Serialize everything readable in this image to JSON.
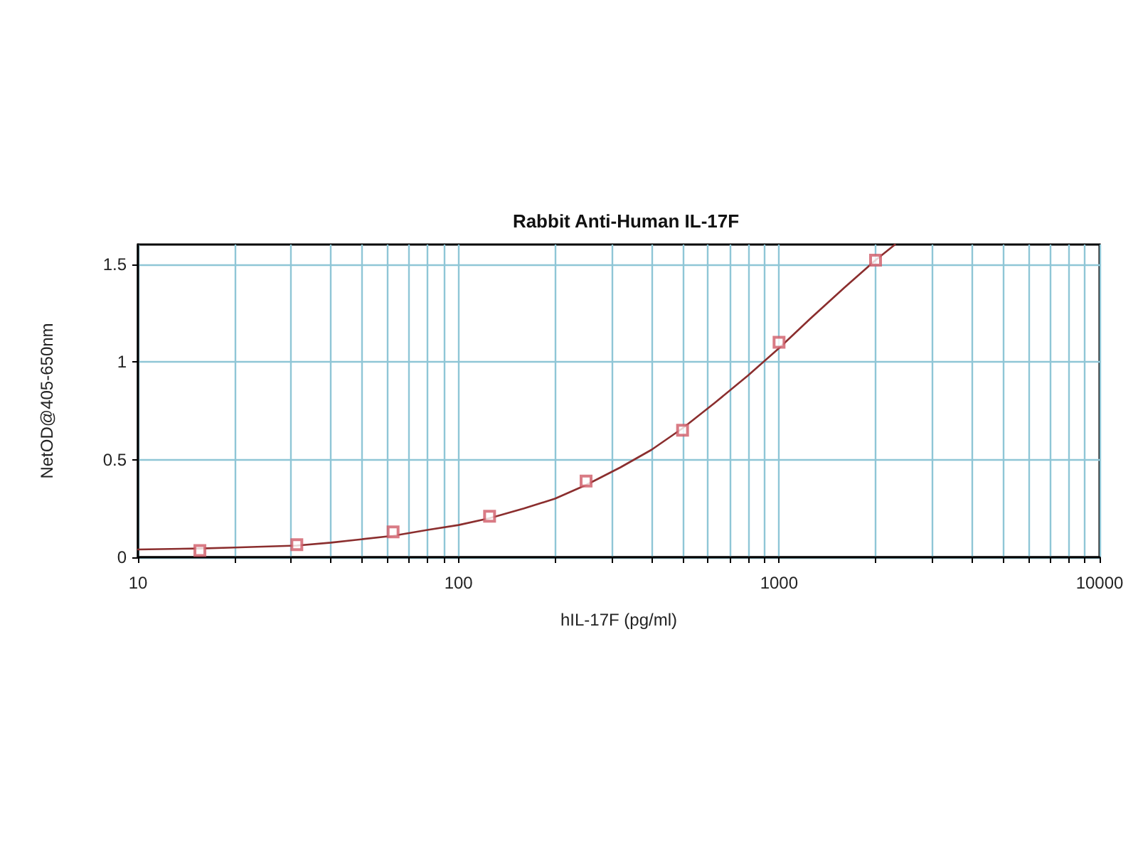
{
  "chart_data": {
    "type": "scatter",
    "title": "Rabbit Anti-Human IL-17F",
    "xlabel": "hIL-17F (pg/ml)",
    "ylabel": "NetOD@405-650nm",
    "log": "x",
    "grid": true,
    "xlim": [
      10,
      10000
    ],
    "ylim": [
      0,
      1.6
    ],
    "xticks": [
      10,
      {
        "value": 20,
        "label": null
      },
      {
        "value": 30,
        "label": null
      },
      {
        "value": 40,
        "label": null
      },
      {
        "value": 50,
        "label": null
      },
      {
        "value": 60,
        "label": null
      },
      {
        "value": 70,
        "label": null
      },
      {
        "value": 80,
        "label": null
      },
      {
        "value": 90,
        "label": null
      },
      100,
      {
        "value": 200,
        "label": null
      },
      {
        "value": 300,
        "label": null
      },
      {
        "value": 400,
        "label": null
      },
      {
        "value": 500,
        "label": null
      },
      {
        "value": 600,
        "label": null
      },
      {
        "value": 700,
        "label": null
      },
      {
        "value": 800,
        "label": null
      },
      {
        "value": 900,
        "label": null
      },
      1000,
      {
        "value": 2000,
        "label": null
      },
      {
        "value": 3000,
        "label": null
      },
      {
        "value": 4000,
        "label": null
      },
      {
        "value": 5000,
        "label": null
      },
      {
        "value": 6000,
        "label": null
      },
      {
        "value": 7000,
        "label": null
      },
      {
        "value": 8000,
        "label": null
      },
      {
        "value": 9000,
        "label": null
      },
      10000
    ],
    "yticks": [
      0,
      0.5,
      1,
      1.5
    ],
    "series": [
      {
        "type": "line",
        "color": "#8b2e2e",
        "marker": "none",
        "x": [
          10,
          15.6,
          20,
          31.3,
          40,
          62.5,
          80,
          100,
          125,
          160,
          200,
          250,
          320,
          400,
          500,
          630,
          800,
          1000,
          1250,
          1600,
          2000,
          2300
        ],
        "values": [
          0.04,
          0.045,
          0.05,
          0.06,
          0.075,
          0.11,
          0.14,
          0.165,
          0.2,
          0.25,
          0.3,
          0.37,
          0.46,
          0.55,
          0.66,
          0.79,
          0.93,
          1.07,
          1.22,
          1.38,
          1.52,
          1.6
        ]
      },
      {
        "color": "#d05a66",
        "marker": "square",
        "x": [
          15.6,
          31.3,
          62.5,
          125,
          250,
          500,
          1000,
          2000
        ],
        "values": [
          0.035,
          0.065,
          0.13,
          0.21,
          0.39,
          0.65,
          1.1,
          1.52
        ]
      }
    ]
  }
}
